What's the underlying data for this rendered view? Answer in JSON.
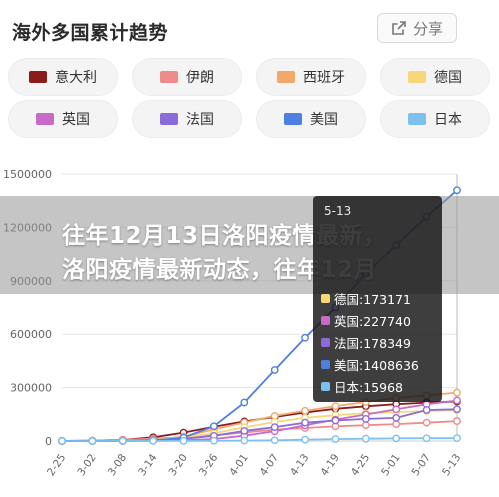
{
  "header": {
    "title": "海外多国累计趋势",
    "share_label": "分享"
  },
  "legend": [
    {
      "name": "意大利",
      "color": "#8b1c1c"
    },
    {
      "name": "伊朗",
      "color": "#ef8a8a"
    },
    {
      "name": "西班牙",
      "color": "#f2a868"
    },
    {
      "name": "德国",
      "color": "#f7d77a"
    },
    {
      "name": "英国",
      "color": "#c86bc8"
    },
    {
      "name": "法国",
      "color": "#8a6bd8"
    },
    {
      "name": "美国",
      "color": "#4f7fe0"
    },
    {
      "name": "日本",
      "color": "#7cc0f0"
    }
  ],
  "banner": {
    "line1": "往年12月13日洛阳疫情最新，",
    "line2": "洛阳疫情最新动态，往年12月"
  },
  "tooltip": {
    "date": "5-13",
    "rows": [
      {
        "label": "德国:173171",
        "color": "#f7d77a"
      },
      {
        "label": "英国:227740",
        "color": "#c86bc8"
      },
      {
        "label": "法国:178349",
        "color": "#8a6bd8"
      },
      {
        "label": "美国:1408636",
        "color": "#4f7fe0"
      },
      {
        "label": "日本:15968",
        "color": "#7cc0f0"
      }
    ]
  },
  "chart_data": {
    "type": "line",
    "x": [
      "2-25",
      "3-02",
      "3-08",
      "3-14",
      "3-20",
      "3-26",
      "4-01",
      "4-07",
      "4-13",
      "4-19",
      "4-25",
      "5-01",
      "5-07",
      "5-13"
    ],
    "ylim": [
      0,
      1500000
    ],
    "yticks": [
      0,
      300000,
      600000,
      900000,
      1200000,
      1500000
    ],
    "ytick_labels": [
      "0",
      "300000",
      "600000",
      "900000",
      "1200000",
      "1500000"
    ],
    "grid": true,
    "series": [
      {
        "name": "意大利",
        "color": "#8b1c1c",
        "values": [
          400,
          2000,
          6000,
          21000,
          47000,
          80000,
          110000,
          135000,
          160000,
          181000,
          195000,
          207000,
          216000,
          222000
        ]
      },
      {
        "name": "伊朗",
        "color": "#ef8a8a",
        "values": [
          100,
          1500,
          6500,
          12700,
          20600,
          32000,
          48000,
          64000,
          73000,
          82000,
          89000,
          95000,
          103000,
          112000
        ]
      },
      {
        "name": "西班牙",
        "color": "#f2a868",
        "values": [
          10,
          100,
          600,
          6400,
          25000,
          65000,
          104000,
          141000,
          170000,
          196000,
          219000,
          242000,
          256000,
          272000
        ]
      },
      {
        "name": "德国",
        "color": "#f7d77a",
        "values": [
          20,
          200,
          900,
          4800,
          20000,
          43000,
          77000,
          107000,
          130000,
          145000,
          156000,
          163000,
          168000,
          173171
        ]
      },
      {
        "name": "英国",
        "color": "#c86bc8",
        "values": [
          10,
          40,
          300,
          1200,
          4000,
          11000,
          30000,
          55000,
          88000,
          120000,
          149000,
          178000,
          206000,
          227740
        ]
      },
      {
        "name": "法国",
        "color": "#8a6bd8",
        "values": [
          10,
          200,
          900,
          4500,
          12600,
          29000,
          57000,
          78000,
          103000,
          115000,
          124000,
          130000,
          174000,
          178349
        ]
      },
      {
        "name": "美国",
        "color": "#4f7fe0",
        "values": [
          50,
          100,
          500,
          2700,
          19000,
          83000,
          216000,
          399000,
          580000,
          750000,
          940000,
          1100000,
          1260000,
          1408636
        ]
      },
      {
        "name": "日本",
        "color": "#7cc0f0",
        "values": [
          160,
          250,
          500,
          800,
          1000,
          1300,
          2400,
          4200,
          7600,
          10800,
          13000,
          14500,
          15600,
          15968
        ]
      }
    ]
  }
}
